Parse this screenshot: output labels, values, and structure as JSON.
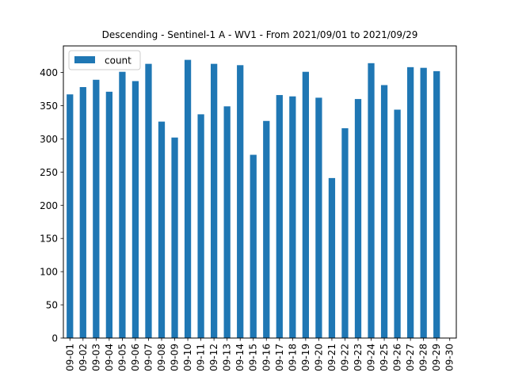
{
  "chart_data": {
    "type": "bar",
    "title": "Descending - Sentinel-1 A - WV1 - From 2021/09/01 to 2021/09/29",
    "xlabel": "",
    "ylabel": "",
    "categories": [
      "09-01",
      "09-02",
      "09-03",
      "09-04",
      "09-05",
      "09-06",
      "09-07",
      "09-08",
      "09-09",
      "09-10",
      "09-11",
      "09-12",
      "09-13",
      "09-14",
      "09-15",
      "09-16",
      "09-17",
      "09-18",
      "09-19",
      "09-20",
      "09-21",
      "09-22",
      "09-23",
      "09-24",
      "09-25",
      "09-26",
      "09-27",
      "09-28",
      "09-29",
      "09-30"
    ],
    "series": [
      {
        "name": "count",
        "color": "#1f77b4",
        "values": [
          367,
          378,
          389,
          371,
          401,
          387,
          413,
          326,
          302,
          419,
          337,
          413,
          349,
          411,
          276,
          327,
          366,
          364,
          401,
          362,
          241,
          316,
          360,
          414,
          381,
          344,
          408,
          407,
          402,
          0
        ]
      }
    ],
    "ylim": [
      0,
      440
    ],
    "yticks": [
      0,
      50,
      100,
      150,
      200,
      250,
      300,
      350,
      400
    ],
    "legend_position": "upper-left",
    "grid": false
  }
}
